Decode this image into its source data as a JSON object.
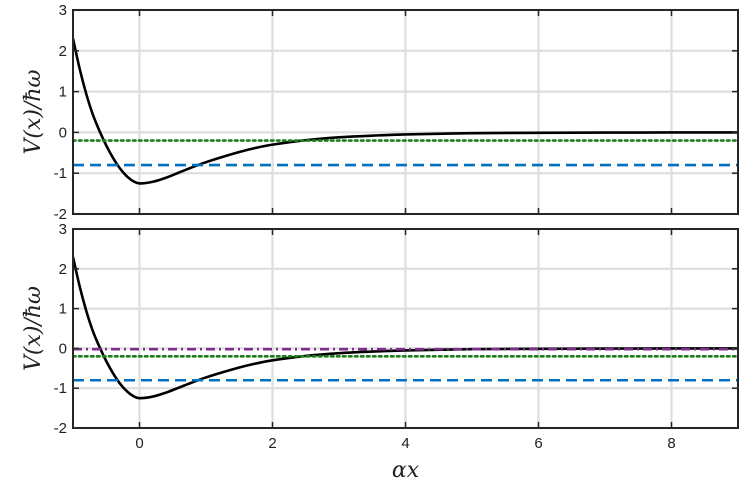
{
  "chart_data": [
    {
      "type": "line",
      "title": "",
      "xlabel": "",
      "ylabel": "V(x)/ħω",
      "xlim": [
        -1,
        9
      ],
      "ylim": [
        -2,
        3
      ],
      "xticks": [
        0,
        2,
        4,
        6,
        8
      ],
      "yticks": [
        -2,
        -1,
        0,
        1,
        2,
        3
      ],
      "ytick_labels": [
        "-2",
        "-1",
        "0",
        "1",
        "2",
        "3"
      ],
      "grid": true,
      "legend": "none",
      "series": [
        {
          "style": "solid",
          "color": "#000000",
          "x": [
            -1.0,
            -0.9,
            -0.8,
            -0.7,
            -0.6,
            -0.5,
            -0.4,
            -0.3,
            -0.2,
            -0.1,
            0.0,
            0.2,
            0.4,
            0.6,
            0.8,
            1.0,
            1.25,
            1.5,
            1.75,
            2.0,
            2.5,
            3.0,
            3.5,
            4.0,
            5.0,
            6.0,
            7.0,
            8.0,
            9.0
          ],
          "y": [
            2.3,
            1.56,
            0.94,
            0.43,
            0.03,
            -0.32,
            -0.62,
            -0.87,
            -1.06,
            -1.19,
            -1.25,
            -1.21,
            -1.11,
            -0.98,
            -0.85,
            -0.73,
            -0.6,
            -0.48,
            -0.38,
            -0.3,
            -0.19,
            -0.12,
            -0.08,
            -0.05,
            -0.02,
            -0.01,
            -0.005,
            -0.002,
            -0.001
          ]
        },
        {
          "style": "dashed",
          "color": "#0072bd",
          "x": [
            -1,
            9
          ],
          "y": [
            -0.8,
            -0.8
          ]
        },
        {
          "style": "dotted",
          "color": "#1f7f1f",
          "x": [
            -1,
            9
          ],
          "y": [
            -0.2,
            -0.2
          ]
        }
      ]
    },
    {
      "type": "line",
      "title": "",
      "xlabel": "αx",
      "ylabel": "V(x)/ħω",
      "xlim": [
        -1,
        9
      ],
      "ylim": [
        -2,
        3
      ],
      "xticks": [
        0,
        2,
        4,
        6,
        8
      ],
      "xtick_labels": [
        "0",
        "2",
        "4",
        "6",
        "8"
      ],
      "yticks": [
        -2,
        -1,
        0,
        1,
        2,
        3
      ],
      "ytick_labels": [
        "-2",
        "-1",
        "0",
        "1",
        "2",
        "3"
      ],
      "grid": true,
      "legend": "none",
      "series": [
        {
          "style": "solid",
          "color": "#000000",
          "x": [
            -1.0,
            -0.9,
            -0.8,
            -0.7,
            -0.6,
            -0.5,
            -0.4,
            -0.3,
            -0.2,
            -0.1,
            0.0,
            0.2,
            0.4,
            0.6,
            0.8,
            1.0,
            1.25,
            1.5,
            1.75,
            2.0,
            2.5,
            3.0,
            3.5,
            4.0,
            5.0,
            6.0,
            7.0,
            8.0,
            9.0
          ],
          "y": [
            2.3,
            1.56,
            0.94,
            0.43,
            0.03,
            -0.32,
            -0.62,
            -0.87,
            -1.06,
            -1.19,
            -1.25,
            -1.21,
            -1.11,
            -0.98,
            -0.85,
            -0.73,
            -0.6,
            -0.48,
            -0.38,
            -0.3,
            -0.19,
            -0.12,
            -0.08,
            -0.05,
            -0.02,
            -0.01,
            -0.005,
            -0.002,
            -0.001
          ]
        },
        {
          "style": "dashed",
          "color": "#0072bd",
          "x": [
            -1,
            9
          ],
          "y": [
            -0.8,
            -0.8
          ]
        },
        {
          "style": "dotted",
          "color": "#1f7f1f",
          "x": [
            -1,
            9
          ],
          "y": [
            -0.2,
            -0.2
          ]
        },
        {
          "style": "dashdot",
          "color": "#7e2f8e",
          "x": [
            -1,
            9
          ],
          "y": [
            -0.02,
            -0.02
          ]
        }
      ]
    }
  ]
}
